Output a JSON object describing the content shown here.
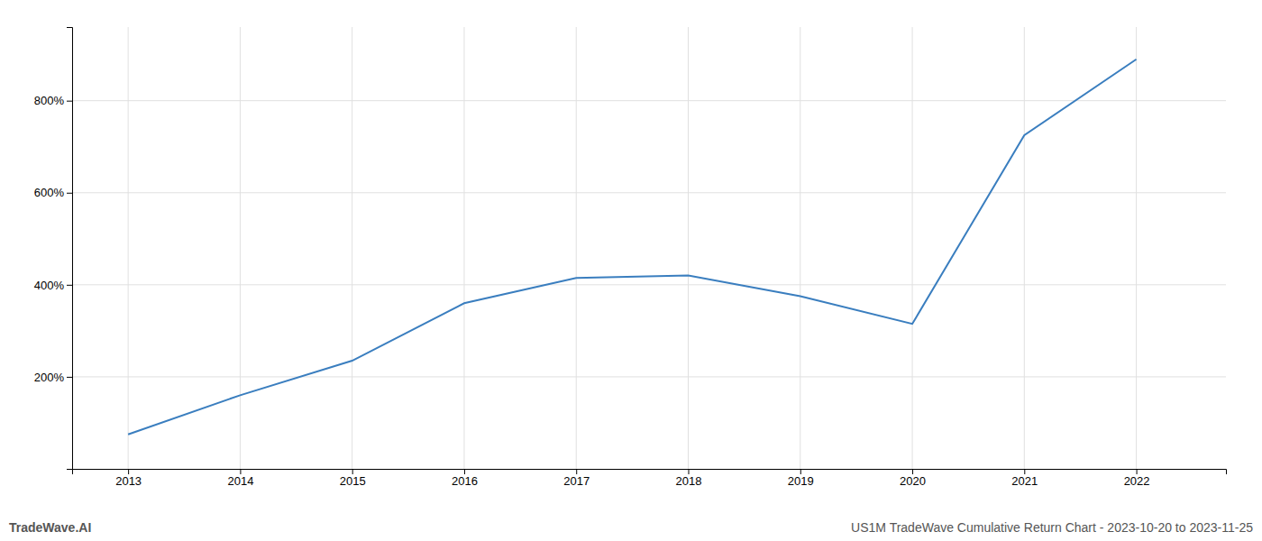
{
  "chart_data": {
    "type": "line",
    "x": [
      2013,
      2014,
      2015,
      2016,
      2017,
      2018,
      2019,
      2020,
      2021,
      2022
    ],
    "values": [
      75,
      160,
      235,
      360,
      415,
      420,
      375,
      315,
      725,
      890
    ],
    "color": "#3a7ebf",
    "xlim": [
      2012.5,
      2022.8
    ],
    "ylim": [
      0,
      960
    ],
    "xticks": [
      2013,
      2014,
      2015,
      2016,
      2017,
      2018,
      2019,
      2020,
      2021,
      2022
    ],
    "yticks": [
      {
        "value": 200,
        "label": "200%"
      },
      {
        "value": 400,
        "label": "400%"
      },
      {
        "value": 600,
        "label": "600%"
      },
      {
        "value": 800,
        "label": "800%"
      }
    ],
    "grid": true,
    "annotations": [
      "TradeWave.AI",
      "US1M TradeWave Cumulative Return Chart - 2023-10-20 to 2023-11-25"
    ]
  }
}
